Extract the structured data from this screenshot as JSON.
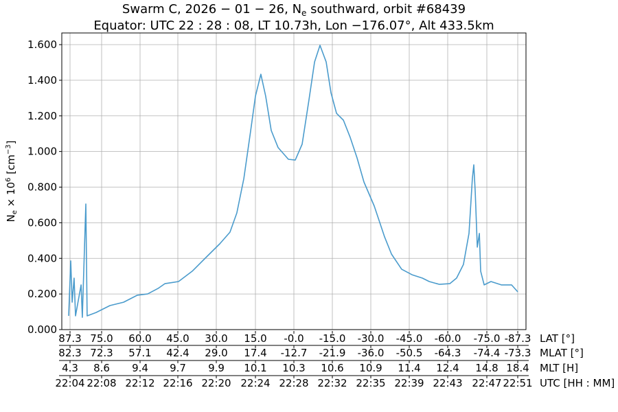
{
  "chart_data": {
    "type": "line",
    "title_line1": "Swarm C,  2026 − 01 − 26,  N",
    "title_line1_sub": "e",
    "title_line1_rest": " southward,  orbit #68439",
    "title_line2": "Equator:  UTC 22 : 28 : 08,  LT 10.73h,  Lon  −176.07°,  Alt 433.5km",
    "ylabel": "N",
    "ylabel_sub": "e",
    "ylabel_rest": " × 10",
    "ylabel_sup": "6",
    "ylabel_unit": " [cm",
    "ylabel_unit_sup": "−3",
    "ylabel_unit_end": "]",
    "ylim": [
      0,
      1.66
    ],
    "yticks": [
      "0.000",
      "0.200",
      "0.400",
      "0.600",
      "0.800",
      "1.000",
      "1.200",
      "1.400",
      "1.600"
    ],
    "grid": true,
    "line_color": "#4a9bcc",
    "x_axis_rows": [
      {
        "label": "LAT [°]",
        "ticks": [
          "87.3",
          "75.0",
          "60.0",
          "45.0",
          "30.0",
          "15.0",
          "-0.0",
          "-15.0",
          "-30.0",
          "-45.0",
          "-60.0",
          "-75.0",
          "-87.3"
        ]
      },
      {
        "label": "MLAT [°]",
        "ticks": [
          "82.3",
          "72.3",
          "57.1",
          "42.4",
          "29.0",
          "17.4",
          "-12.7",
          "-21.9",
          "-36.0",
          "-50.5",
          "-64.3",
          "-74.4",
          "-73.3"
        ]
      },
      {
        "label": "MLT [H]",
        "ticks": [
          "4.3",
          "8.6",
          "9.4",
          "9.7",
          "9.9",
          "10.1",
          "10.3",
          "10.6",
          "10.9",
          "11.4",
          "12.4",
          "14.8",
          "18.4"
        ]
      },
      {
        "label": "UTC [HH : MM]",
        "ticks": [
          "22:04",
          "22:08",
          "22:12",
          "22:16",
          "22:20",
          "22:24",
          "22:28",
          "22:32",
          "22:35",
          "22:39",
          "22:43",
          "22:47",
          "22:51"
        ]
      }
    ],
    "xlim": [
      "22:04:00",
      "22:51:00"
    ],
    "series": [
      {
        "x": [
          "22:04:00",
          "22:04:13",
          "22:04:22",
          "22:04:34",
          "22:04:43",
          "22:05:18",
          "22:05:26",
          "22:05:48",
          "22:05:56",
          "22:06:52",
          "22:08:19",
          "22:09:45",
          "22:11:11",
          "22:12:16",
          "22:13:21",
          "22:14:04",
          "22:15:30",
          "22:16:56",
          "22:18:22",
          "22:19:49",
          "22:20:53",
          "22:21:36",
          "22:22:20",
          "22:23:03",
          "22:23:33",
          "22:24:07",
          "22:24:37",
          "22:25:12",
          "22:25:55",
          "22:27:00",
          "22:27:43",
          "22:28:26",
          "22:29:09",
          "22:29:44",
          "22:30:18",
          "22:30:57",
          "22:31:27",
          "22:32:02",
          "22:32:45",
          "22:33:28",
          "22:34:11",
          "22:34:54",
          "22:35:59",
          "22:37:04",
          "22:37:47",
          "22:38:51",
          "22:39:56",
          "22:41:01",
          "22:41:44",
          "22:42:48",
          "22:43:53",
          "22:44:36",
          "22:45:19",
          "22:45:54",
          "22:46:15",
          "22:46:24",
          "22:46:33",
          "22:46:46",
          "22:46:59",
          "22:47:07",
          "22:47:29",
          "22:48:12",
          "22:49:17",
          "22:50:21",
          "22:51:00"
        ],
        "y": [
          0.077,
          0.386,
          0.154,
          0.289,
          0.077,
          0.251,
          0.069,
          0.705,
          0.077,
          0.096,
          0.135,
          0.154,
          0.193,
          0.2,
          0.231,
          0.258,
          0.27,
          0.328,
          0.405,
          0.482,
          0.547,
          0.655,
          0.848,
          1.118,
          1.311,
          1.434,
          1.311,
          1.118,
          1.022,
          0.956,
          0.952,
          1.041,
          1.291,
          1.503,
          1.596,
          1.503,
          1.33,
          1.214,
          1.176,
          1.079,
          0.964,
          0.829,
          0.694,
          0.52,
          0.424,
          0.339,
          0.308,
          0.289,
          0.27,
          0.254,
          0.258,
          0.289,
          0.366,
          0.54,
          0.848,
          0.925,
          0.771,
          0.463,
          0.54,
          0.328,
          0.251,
          0.27,
          0.251,
          0.251,
          0.212
        ]
      }
    ]
  }
}
